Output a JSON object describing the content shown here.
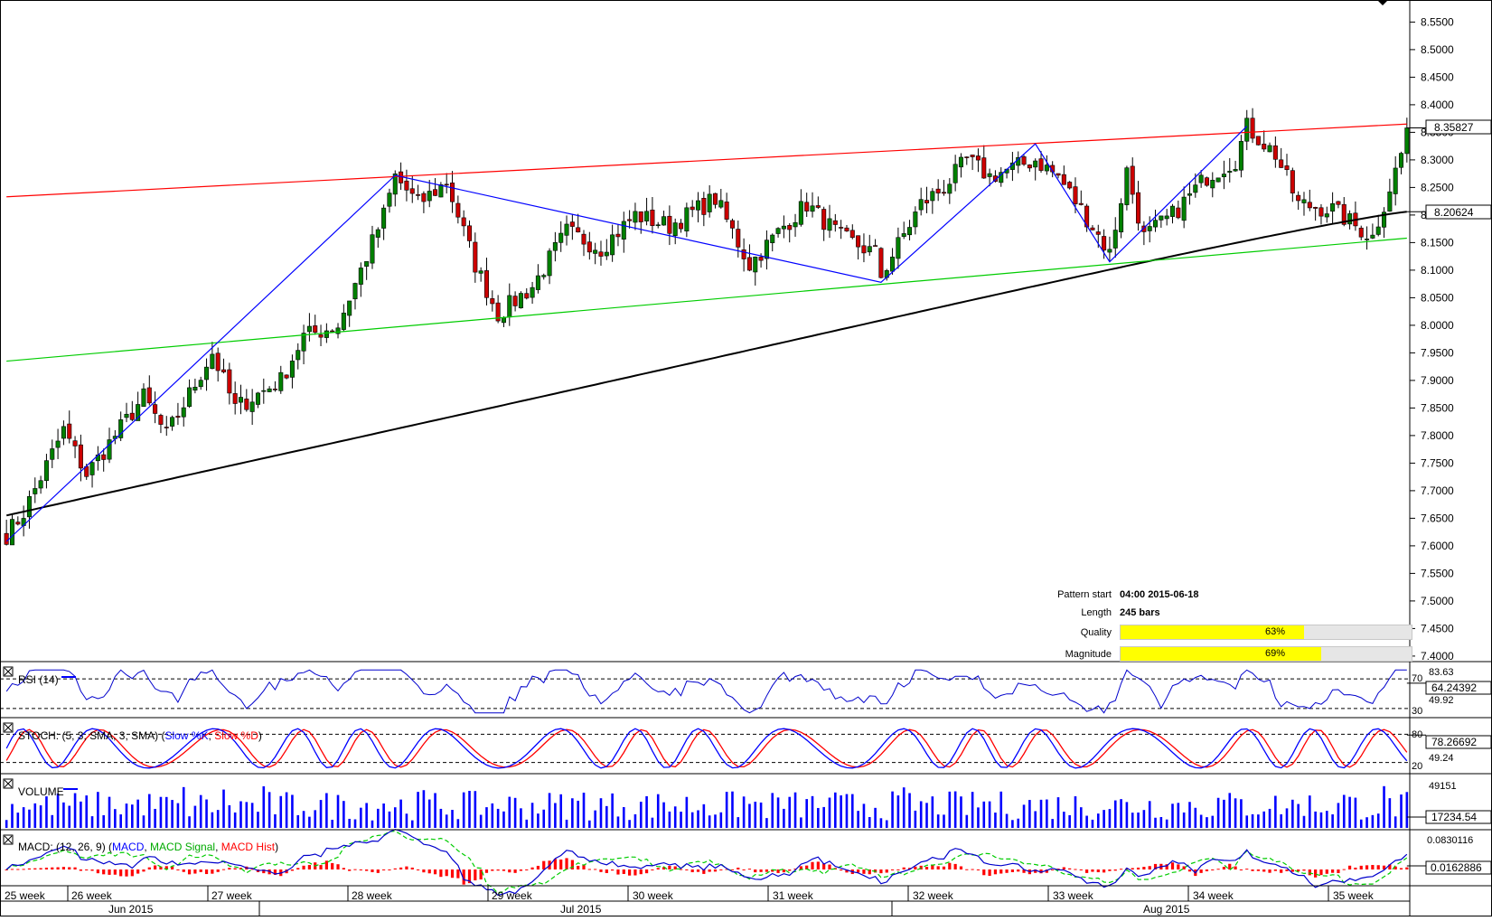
{
  "chart_data": {
    "type": "candlestick",
    "main": {
      "y_ticks": [
        "8.5500",
        "8.5000",
        "8.4500",
        "8.4000",
        "8.3500",
        "8.3000",
        "8.2500",
        "8.2000",
        "8.1500",
        "8.1000",
        "8.0500",
        "8.0000",
        "7.9500",
        "7.9000",
        "7.8500",
        "7.8000",
        "7.7500",
        "7.7000",
        "7.6500",
        "7.6000",
        "7.5500",
        "7.5000",
        "7.4500",
        "7.4000"
      ],
      "ylim": [
        7.39,
        8.59
      ],
      "price_badge": "8.35827",
      "ma_badge": "8.20624",
      "colors": {
        "up": "#008000",
        "down": "#cc0000",
        "resistance": "#ff0000",
        "support": "#00cc00",
        "zigzag": "#0000ff",
        "ma": "#000000"
      },
      "resistance_line": [
        [
          0,
          8.233
        ],
        [
          245,
          8.365
        ]
      ],
      "support_line": [
        [
          0,
          7.935
        ],
        [
          245,
          8.158
        ]
      ],
      "zigzag": [
        [
          0,
          7.608
        ],
        [
          68,
          8.272
        ],
        [
          153,
          8.078
        ],
        [
          180,
          8.329
        ],
        [
          193,
          8.115
        ],
        [
          217,
          8.361
        ]
      ]
    },
    "pattern_info": {
      "pattern_start_label": "Pattern start",
      "pattern_start": "04:00 2015-06-18",
      "length_label": "Length",
      "length": "245 bars",
      "quality_label": "Quality",
      "quality": "63%",
      "quality_value": 63,
      "magnitude_label": "Magnitude",
      "magnitude": "69%",
      "magnitude_value": 69
    },
    "panels": {
      "rsi": {
        "label": "RSI (14)",
        "levels": [
          "70",
          "30"
        ],
        "top": "83.63",
        "mid": "49.92",
        "badge": "64.24392"
      },
      "stoch": {
        "label_prefix": "STOCH: (5, 3, SMA, 3, SMA) (",
        "k": "Slow %K",
        "sep": ", ",
        "d": "Slow %D",
        "suffix": ")",
        "levels": [
          "80",
          "20"
        ],
        "mid": "49.24",
        "badge": "78.26692"
      },
      "volume": {
        "label": "VOLUME",
        "top": "49151",
        "badge": "17234.54"
      },
      "macd": {
        "label_prefix": "MACD: (12, 26, 9) (",
        "macd": "MACD",
        "sep": ", ",
        "signal": "MACD Signal",
        "sep2": ", ",
        "hist": "MACD Hist",
        "suffix": ")",
        "top": "0.0830116",
        "badge": "0.0162886"
      }
    },
    "x_weeks": [
      "25 week",
      "26 week",
      "27 week",
      "28 week",
      "29 week",
      "30 week",
      "31 week",
      "32 week",
      "33 week",
      "34 week",
      "35 week"
    ],
    "x_months": [
      "Jun 2015",
      "Jul 2015",
      "Aug 2015"
    ]
  }
}
